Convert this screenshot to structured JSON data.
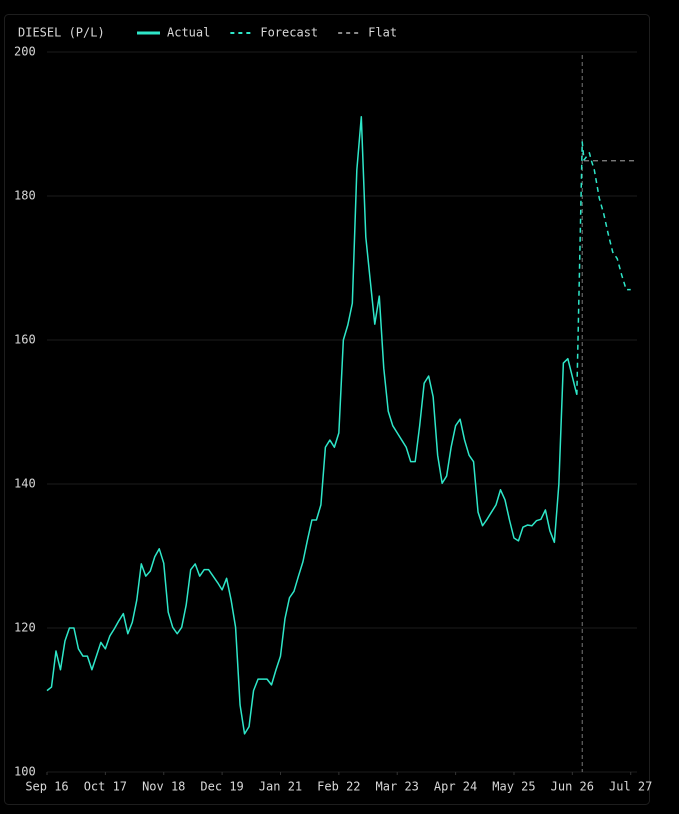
{
  "chart_data": {
    "type": "line",
    "title": "DIESEL (P/L)",
    "xlim": [
      0,
      131.4
    ],
    "xticks": [
      {
        "value": 0,
        "label": "Sep 16"
      },
      {
        "value": 13,
        "label": "Oct 17"
      },
      {
        "value": 26,
        "label": "Nov 18"
      },
      {
        "value": 39,
        "label": "Dec 19"
      },
      {
        "value": 52,
        "label": "Jan 21"
      },
      {
        "value": 65,
        "label": "Feb 22"
      },
      {
        "value": 78,
        "label": "Mar 23"
      },
      {
        "value": 91,
        "label": "Apr 24"
      },
      {
        "value": 104,
        "label": "May 25"
      },
      {
        "value": 117,
        "label": "Jun 26"
      },
      {
        "value": 130,
        "label": "Jul 27"
      }
    ],
    "ylim": [
      100,
      200
    ],
    "yticks": [
      100,
      120,
      140,
      160,
      180,
      200
    ],
    "grid": true,
    "vline": 119.2,
    "series": [
      {
        "name": "Actual",
        "color": "#2ee6c8",
        "dash": "solid",
        "x": [
          0,
          1,
          2,
          3,
          4,
          5,
          6,
          7,
          8,
          9,
          10,
          11,
          12,
          13,
          14,
          15,
          16,
          17,
          18,
          19,
          20,
          21,
          22,
          23,
          24,
          25,
          26,
          27,
          28,
          29,
          30,
          31,
          32,
          33,
          34,
          35,
          36,
          37,
          38,
          39,
          40,
          41,
          42,
          43,
          44,
          45,
          46,
          47,
          48,
          49,
          50,
          51,
          52,
          53,
          54,
          55,
          56,
          57,
          58,
          59,
          60,
          61,
          62,
          63,
          64,
          65,
          66,
          67,
          68,
          69,
          70,
          71,
          72,
          73,
          74,
          75,
          76,
          77,
          78,
          79,
          80,
          81,
          82,
          83,
          84,
          85,
          86,
          87,
          88,
          89,
          90,
          91,
          92,
          93,
          94,
          95,
          96,
          97,
          98,
          99,
          100,
          101,
          102,
          103,
          104,
          105,
          106,
          107,
          108,
          109,
          110,
          111,
          112,
          113,
          114,
          115,
          116,
          117,
          118
        ],
        "values": [
          111.3,
          111.8,
          116.8,
          114.2,
          118.2,
          120,
          120,
          117.1,
          116.1,
          116.1,
          114.2,
          116.1,
          118,
          117.1,
          118.9,
          119.9,
          121,
          122,
          119.2,
          120.8,
          123.9,
          128.9,
          127.2,
          127.9,
          129.9,
          131,
          129,
          122.2,
          120.1,
          119.2,
          120.1,
          123.2,
          128.1,
          128.9,
          127.2,
          128.1,
          128.1,
          127.2,
          126.3,
          125.3,
          126.9,
          123.9,
          120.1,
          109.3,
          105.3,
          106.3,
          111.3,
          112.9,
          112.9,
          112.9,
          112.1,
          114.2,
          116.1,
          121.3,
          124.2,
          125.1,
          127.2,
          129.2,
          132.2,
          135,
          135,
          137.1,
          145.1,
          146.1,
          145.1,
          147.1,
          160,
          162.1,
          165.1,
          183.6,
          191,
          174.3,
          168.2,
          162.2,
          166.1,
          156.1,
          150.1,
          148.1,
          147.1,
          146.1,
          145.1,
          143.1,
          143.1,
          148.1,
          154,
          155,
          152.1,
          144,
          140.1,
          141.1,
          145.1,
          148.1,
          149,
          146.1,
          144,
          143.1,
          136.1,
          134.2,
          135.1,
          136.1,
          137.1,
          139.2,
          137.8,
          135,
          132.5,
          132.1,
          134,
          134.3,
          134.2,
          134.9,
          135.1,
          136.4,
          133.5,
          131.9,
          140,
          156.8,
          157.4,
          154.9,
          152.4
        ]
      },
      {
        "name": "Forecast",
        "color": "#2ee6c8",
        "dash": "dashed",
        "x": [
          118,
          119.2,
          119.6,
          120.2,
          120.8,
          121.2,
          121.9,
          123,
          124,
          125,
          126,
          127,
          128,
          129,
          130
        ],
        "values": [
          152.4,
          187.5,
          185,
          185.5,
          186,
          185,
          183.6,
          179.7,
          177.5,
          174.7,
          172.2,
          171.3,
          169,
          167,
          167
        ]
      },
      {
        "name": "Flat",
        "color": "#888888",
        "dash": "dashed",
        "x": [
          119.6,
          131.2
        ],
        "values": [
          184.9,
          184.9
        ]
      }
    ]
  }
}
